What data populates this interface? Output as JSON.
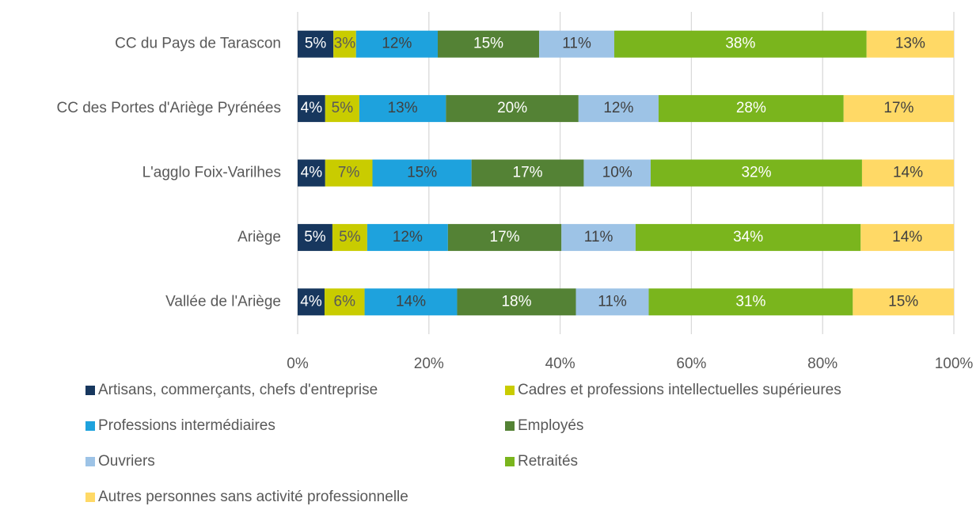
{
  "chart_data": {
    "type": "stacked_barh",
    "categories": [
      "CC du Pays de Tarascon",
      "CC des Portes d'Ariège Pyrénées",
      "L'agglo Foix-Varilhes",
      "Ariège",
      "Vallée de l'Ariège"
    ],
    "series": [
      {
        "name": "Artisans, commerçants, chefs d'entreprise",
        "color": "#17375e",
        "label_color": "#ffffff",
        "values": [
          5.45,
          4.2,
          4.2,
          5.3,
          4.1
        ],
        "value_labels": [
          "5%",
          "4%",
          "4%",
          "5%",
          "4%"
        ]
      },
      {
        "name": "Cadres et professions intellectuelles supérieures",
        "color": "#c9cc00",
        "label_color": "#595959",
        "values": [
          3.45,
          5.2,
          7.2,
          5.3,
          6.1
        ],
        "value_labels": [
          "3%",
          "5%",
          "7%",
          "5%",
          "6%"
        ]
      },
      {
        "name": "Professions intermédiaires",
        "color": "#1ea2dd",
        "label_color": "#404040",
        "values": [
          12.45,
          13.2,
          15.1,
          12.3,
          14.1
        ],
        "value_labels": [
          "12%",
          "13%",
          "15%",
          "12%",
          "14%"
        ]
      },
      {
        "name": "Employés",
        "color": "#548235",
        "label_color": "#ffffff",
        "values": [
          15.45,
          20.2,
          17.1,
          17.3,
          18.1
        ],
        "value_labels": [
          "15%",
          "20%",
          "17%",
          "17%",
          "18%"
        ]
      },
      {
        "name": "Ouvriers",
        "color": "#9dc3e6",
        "label_color": "#404040",
        "values": [
          11.45,
          12.2,
          10.2,
          11.3,
          11.1
        ],
        "value_labels": [
          "11%",
          "12%",
          "10%",
          "11%",
          "11%"
        ]
      },
      {
        "name": "Retraités",
        "color": "#7ab51d",
        "label_color": "#ffffff",
        "values": [
          38.45,
          28.2,
          32.2,
          34.3,
          31.1
        ],
        "value_labels": [
          "38%",
          "28%",
          "32%",
          "34%",
          "31%"
        ]
      },
      {
        "name": "Autres personnes sans activité professionnelle",
        "color": "#ffd966",
        "label_color": "#404040",
        "values": [
          13.3,
          16.8,
          14.0,
          14.2,
          15.4
        ],
        "value_labels": [
          "13%",
          "17%",
          "14%",
          "14%",
          "15%"
        ]
      }
    ],
    "xlim": [
      0,
      100
    ],
    "xticks": [
      {
        "value": 0,
        "label": "0%"
      },
      {
        "value": 20,
        "label": "20%"
      },
      {
        "value": 40,
        "label": "40%"
      },
      {
        "value": 60,
        "label": "60%"
      },
      {
        "value": 80,
        "label": "80%"
      },
      {
        "value": 100,
        "label": "100%"
      }
    ],
    "grid": true,
    "legend": "bottom"
  }
}
